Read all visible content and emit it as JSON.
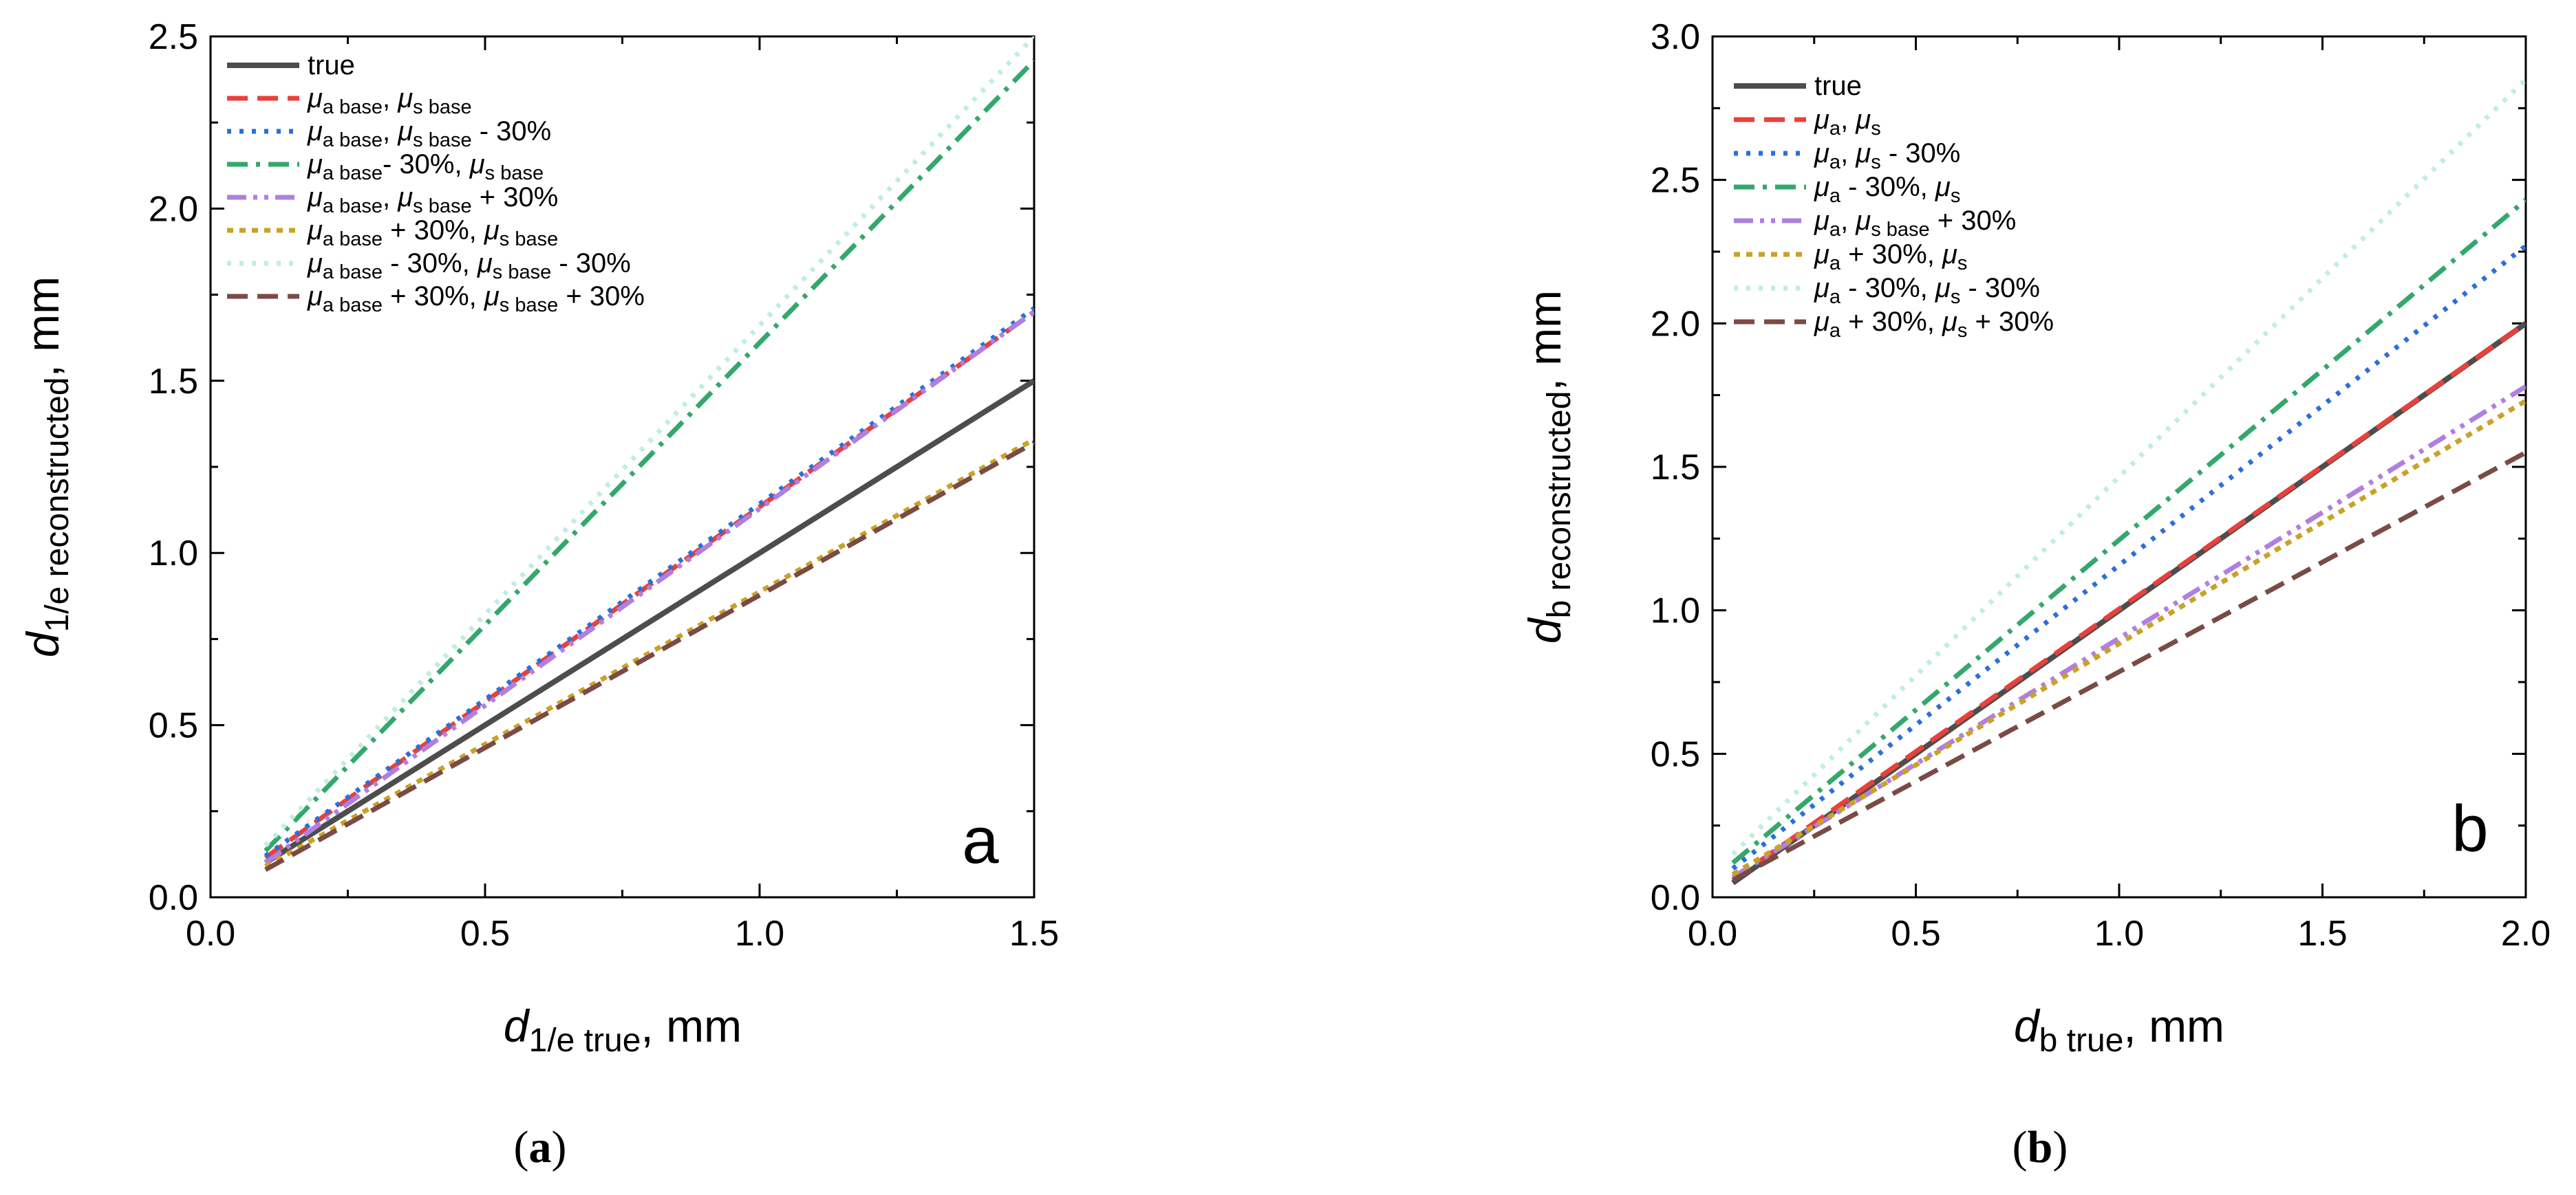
{
  "chart_data": [
    {
      "type": "line",
      "panel_letter": "a",
      "caption": "(a)",
      "xlabel": {
        "main": "d",
        "sub": "1/e true",
        "tail": ", mm"
      },
      "ylabel": {
        "main": "d",
        "sub": "1/e reconstructed",
        "tail": ", mm"
      },
      "xlim": [
        0,
        1.5
      ],
      "ylim": [
        0,
        2.5
      ],
      "xticks": [
        "0.0",
        "0.5",
        "1.0",
        "1.5"
      ],
      "xtick_values": [
        0,
        0.5,
        1.0,
        1.5
      ],
      "yticks": [
        "0.0",
        "0.5",
        "1.0",
        "1.5",
        "2.0",
        "2.5"
      ],
      "ytick_values": [
        0,
        0.5,
        1.0,
        1.5,
        2.0,
        2.5
      ],
      "legend_position": "top-left",
      "series": [
        {
          "name": "true",
          "style": "solid",
          "color": "#4d4d4d",
          "x": [
            0.1,
            1.5
          ],
          "y": [
            0.1,
            1.5
          ],
          "label": [
            {
              "t": "true"
            }
          ]
        },
        {
          "name": "mu_a base, mu_s base",
          "style": "dash",
          "color": "#e8413c",
          "x": [
            0.1,
            1.5
          ],
          "y": [
            0.115,
            1.7
          ],
          "label": [
            {
              "t": "μ",
              "i": true
            },
            {
              "t": "a base",
              "s": true
            },
            {
              "t": ", "
            },
            {
              "t": "μ",
              "i": true
            },
            {
              "t": "s base",
              "s": true
            }
          ]
        },
        {
          "name": "mu_a base, mu_s base - 30%",
          "style": "dot",
          "color": "#2a6fdb",
          "x": [
            0.1,
            1.5
          ],
          "y": [
            0.12,
            1.71
          ],
          "label": [
            {
              "t": "μ",
              "i": true
            },
            {
              "t": "a base",
              "s": true
            },
            {
              "t": ", "
            },
            {
              "t": "μ",
              "i": true
            },
            {
              "t": "s base",
              "s": true
            },
            {
              "t": " - 30%"
            }
          ]
        },
        {
          "name": "mu_a base- 30%, mu_s base",
          "style": "dashdot",
          "color": "#34a86b",
          "x": [
            0.1,
            1.5
          ],
          "y": [
            0.135,
            2.43
          ],
          "label": [
            {
              "t": "μ",
              "i": true
            },
            {
              "t": "a base",
              "s": true
            },
            {
              "t": "- 30%, "
            },
            {
              "t": "μ",
              "i": true
            },
            {
              "t": "s base",
              "s": true
            }
          ]
        },
        {
          "name": "mu_a base, mu_s base + 30%",
          "style": "dashdotdot",
          "color": "#b07fe0",
          "x": [
            0.1,
            1.5
          ],
          "y": [
            0.1,
            1.7
          ],
          "label": [
            {
              "t": "μ",
              "i": true
            },
            {
              "t": "a base",
              "s": true
            },
            {
              "t": ", "
            },
            {
              "t": "μ",
              "i": true
            },
            {
              "t": "s base",
              "s": true
            },
            {
              "t": " + 30%"
            }
          ]
        },
        {
          "name": "mu_a base + 30%, mu_s base",
          "style": "shortdot",
          "color": "#c9a227",
          "x": [
            0.1,
            1.5
          ],
          "y": [
            0.09,
            1.33
          ],
          "label": [
            {
              "t": "μ",
              "i": true
            },
            {
              "t": "a base",
              "s": true
            },
            {
              "t": " + 30%, "
            },
            {
              "t": "μ",
              "i": true
            },
            {
              "t": "s base",
              "s": true
            }
          ]
        },
        {
          "name": "mu_a base - 30%, mu_s base - 30%",
          "style": "dot",
          "color": "#bfeee0",
          "x": [
            0.1,
            1.5
          ],
          "y": [
            0.15,
            2.5
          ],
          "label": [
            {
              "t": "μ",
              "i": true
            },
            {
              "t": "a base",
              "s": true
            },
            {
              "t": " - 30%, "
            },
            {
              "t": "μ",
              "i": true
            },
            {
              "t": "s base",
              "s": true
            },
            {
              "t": " - 30%"
            }
          ]
        },
        {
          "name": "mu_a base + 30%, mu_s base + 30%",
          "style": "dash",
          "color": "#7a4b45",
          "x": [
            0.1,
            1.5
          ],
          "y": [
            0.08,
            1.32
          ],
          "label": [
            {
              "t": "μ",
              "i": true
            },
            {
              "t": "a base",
              "s": true
            },
            {
              "t": " + 30%, "
            },
            {
              "t": "μ",
              "i": true
            },
            {
              "t": "s base",
              "s": true
            },
            {
              "t": " + 30%"
            }
          ]
        }
      ]
    },
    {
      "type": "line",
      "panel_letter": "b",
      "caption": "(b)",
      "xlabel": {
        "main": "d",
        "sub": "b true",
        "tail": ", mm"
      },
      "ylabel": {
        "main": "d",
        "sub": "b reconstructed",
        "tail": ", mm"
      },
      "xlim": [
        0,
        2.0
      ],
      "ylim": [
        0,
        3.0
      ],
      "xticks": [
        "0.0",
        "0.5",
        "1.0",
        "1.5",
        "2.0"
      ],
      "xtick_values": [
        0,
        0.5,
        1.0,
        1.5,
        2.0
      ],
      "yticks": [
        "0.0",
        "0.5",
        "1.0",
        "1.5",
        "2.0",
        "2.5",
        "3.0"
      ],
      "ytick_values": [
        0,
        0.5,
        1.0,
        1.5,
        2.0,
        2.5,
        3.0
      ],
      "legend_position": "top-left",
      "series": [
        {
          "name": "true",
          "style": "solid",
          "color": "#4d4d4d",
          "x": [
            0.05,
            2.0
          ],
          "y": [
            0.05,
            2.0
          ],
          "label": [
            {
              "t": "true"
            }
          ]
        },
        {
          "name": "mu_a, mu_s",
          "style": "dash",
          "color": "#e8413c",
          "x": [
            0.05,
            2.0
          ],
          "y": [
            0.06,
            2.0
          ],
          "label": [
            {
              "t": "μ",
              "i": true
            },
            {
              "t": "a",
              "s": true
            },
            {
              "t": ", "
            },
            {
              "t": "μ",
              "i": true
            },
            {
              "t": "s",
              "s": true
            }
          ]
        },
        {
          "name": "mu_a, mu_s - 30%",
          "style": "dot",
          "color": "#2a6fdb",
          "x": [
            0.05,
            2.0
          ],
          "y": [
            0.1,
            2.27
          ],
          "label": [
            {
              "t": "μ",
              "i": true
            },
            {
              "t": "a",
              "s": true
            },
            {
              "t": ", "
            },
            {
              "t": "μ",
              "i": true
            },
            {
              "t": "s",
              "s": true
            },
            {
              "t": " - 30%"
            }
          ]
        },
        {
          "name": "mu_a - 30%, mu_s",
          "style": "dashdot",
          "color": "#34a86b",
          "x": [
            0.05,
            2.0
          ],
          "y": [
            0.12,
            2.43
          ],
          "label": [
            {
              "t": "μ",
              "i": true
            },
            {
              "t": "a",
              "s": true
            },
            {
              "t": " - 30%, "
            },
            {
              "t": "μ",
              "i": true
            },
            {
              "t": "s",
              "s": true
            }
          ]
        },
        {
          "name": "mu_a, mu_s base + 30%",
          "style": "dashdotdot",
          "color": "#b07fe0",
          "x": [
            0.05,
            2.0
          ],
          "y": [
            0.07,
            1.78
          ],
          "label": [
            {
              "t": "μ",
              "i": true
            },
            {
              "t": "a",
              "s": true
            },
            {
              "t": ", "
            },
            {
              "t": "μ",
              "i": true
            },
            {
              "t": "s base",
              "s": true
            },
            {
              "t": " + 30%"
            }
          ]
        },
        {
          "name": "mu_a + 30%, mu_s",
          "style": "shortdot",
          "color": "#c9a227",
          "x": [
            0.05,
            2.0
          ],
          "y": [
            0.08,
            1.73
          ],
          "label": [
            {
              "t": "μ",
              "i": true
            },
            {
              "t": "a",
              "s": true
            },
            {
              "t": " + 30%, "
            },
            {
              "t": "μ",
              "i": true
            },
            {
              "t": "s",
              "s": true
            }
          ]
        },
        {
          "name": "mu_a - 30%, mu_s - 30%",
          "style": "dot",
          "color": "#bfeee0",
          "x": [
            0.05,
            2.0
          ],
          "y": [
            0.15,
            2.85
          ],
          "label": [
            {
              "t": "μ",
              "i": true
            },
            {
              "t": "a",
              "s": true
            },
            {
              "t": " - 30%, "
            },
            {
              "t": "μ",
              "i": true
            },
            {
              "t": "s",
              "s": true
            },
            {
              "t": " - 30%"
            }
          ]
        },
        {
          "name": "mu_a + 30%, mu_s + 30%",
          "style": "dash",
          "color": "#7a4b45",
          "x": [
            0.05,
            2.0
          ],
          "y": [
            0.06,
            1.55
          ],
          "label": [
            {
              "t": "μ",
              "i": true
            },
            {
              "t": "a",
              "s": true
            },
            {
              "t": " + 30%, "
            },
            {
              "t": "μ",
              "i": true
            },
            {
              "t": "s",
              "s": true
            },
            {
              "t": " + 30%"
            }
          ]
        }
      ]
    }
  ]
}
